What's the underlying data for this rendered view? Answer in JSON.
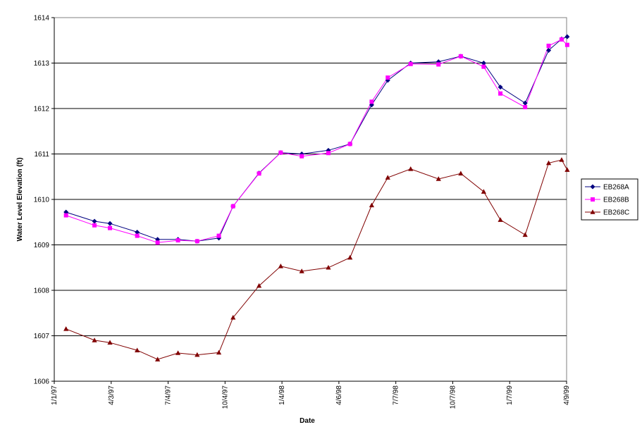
{
  "chart_data": {
    "type": "line",
    "title": "",
    "xlabel": "Date",
    "ylabel": "Water Level Elevation (ft)",
    "ylim": [
      1606,
      1614
    ],
    "y_ticks": [
      1606,
      1607,
      1608,
      1609,
      1610,
      1611,
      1612,
      1613,
      1614
    ],
    "xlim": [
      "1997-01-01",
      "1999-04-09"
    ],
    "x_ticks": [
      {
        "date": "1997-01-01",
        "label": "1/1/97"
      },
      {
        "date": "1997-04-03",
        "label": "4/3/97"
      },
      {
        "date": "1997-07-04",
        "label": "7/4/97"
      },
      {
        "date": "1997-10-04",
        "label": "10/4/97"
      },
      {
        "date": "1998-01-04",
        "label": "1/4/98"
      },
      {
        "date": "1998-04-06",
        "label": "4/6/98"
      },
      {
        "date": "1998-07-07",
        "label": "7/7/98"
      },
      {
        "date": "1998-10-07",
        "label": "10/7/98"
      },
      {
        "date": "1999-01-07",
        "label": "1/7/99"
      },
      {
        "date": "1999-04-09",
        "label": "4/9/99"
      }
    ],
    "grid": "horizontal",
    "legend_position": "right",
    "series": [
      {
        "name": "EB268A",
        "color": "#000080",
        "marker": "diamond",
        "x": [
          "1997-01-20",
          "1997-03-07",
          "1997-04-01",
          "1997-05-15",
          "1997-06-17",
          "1997-07-20",
          "1997-08-20",
          "1997-09-24",
          "1997-10-17",
          "1997-11-28",
          "1998-01-02",
          "1998-02-05",
          "1998-03-20",
          "1998-04-24",
          "1998-05-29",
          "1998-06-24",
          "1998-07-31",
          "1998-09-14",
          "1998-10-20",
          "1998-11-26",
          "1998-12-23",
          "1999-02-01",
          "1999-03-11",
          "1999-04-01",
          "1999-04-10"
        ],
        "y": [
          1609.72,
          1609.52,
          1609.47,
          1609.28,
          1609.12,
          1609.12,
          1609.08,
          1609.15,
          1609.85,
          1610.58,
          1611.03,
          1611.0,
          1611.08,
          1611.22,
          1612.08,
          1612.62,
          1613.0,
          1613.03,
          1613.15,
          1613.0,
          1612.47,
          1612.12,
          1613.28,
          1613.53,
          1613.58
        ]
      },
      {
        "name": "EB268B",
        "color": "#ff00ff",
        "marker": "square",
        "x": [
          "1997-01-20",
          "1997-03-07",
          "1997-04-01",
          "1997-05-15",
          "1997-06-17",
          "1997-07-20",
          "1997-08-20",
          "1997-09-24",
          "1997-10-17",
          "1997-11-28",
          "1998-01-02",
          "1998-02-05",
          "1998-03-20",
          "1998-04-24",
          "1998-05-29",
          "1998-06-24",
          "1998-07-31",
          "1998-09-14",
          "1998-10-20",
          "1998-11-26",
          "1998-12-23",
          "1999-02-01",
          "1999-03-11",
          "1999-04-01",
          "1999-04-10"
        ],
        "y": [
          1609.65,
          1609.43,
          1609.37,
          1609.2,
          1609.05,
          1609.1,
          1609.08,
          1609.2,
          1609.85,
          1610.57,
          1611.03,
          1610.95,
          1611.02,
          1611.22,
          1612.15,
          1612.68,
          1612.98,
          1612.97,
          1613.15,
          1612.92,
          1612.33,
          1612.03,
          1613.38,
          1613.52,
          1613.4
        ]
      },
      {
        "name": "EB268C",
        "color": "#800000",
        "marker": "triangle",
        "x": [
          "1997-01-20",
          "1997-03-07",
          "1997-04-01",
          "1997-05-15",
          "1997-06-17",
          "1997-07-20",
          "1997-08-20",
          "1997-09-24",
          "1997-10-17",
          "1997-11-28",
          "1998-01-02",
          "1998-02-05",
          "1998-03-20",
          "1998-04-24",
          "1998-05-29",
          "1998-06-24",
          "1998-07-31",
          "1998-09-14",
          "1998-10-20",
          "1998-11-26",
          "1998-12-23",
          "1999-02-01",
          "1999-03-11",
          "1999-04-01",
          "1999-04-10"
        ],
        "y": [
          1607.15,
          1606.9,
          1606.85,
          1606.68,
          1606.48,
          1606.62,
          1606.58,
          1606.63,
          1607.4,
          1608.1,
          1608.53,
          1608.42,
          1608.5,
          1608.72,
          1609.87,
          1610.48,
          1610.67,
          1610.45,
          1610.57,
          1610.17,
          1609.55,
          1609.22,
          1610.8,
          1610.87,
          1610.65
        ]
      }
    ]
  }
}
